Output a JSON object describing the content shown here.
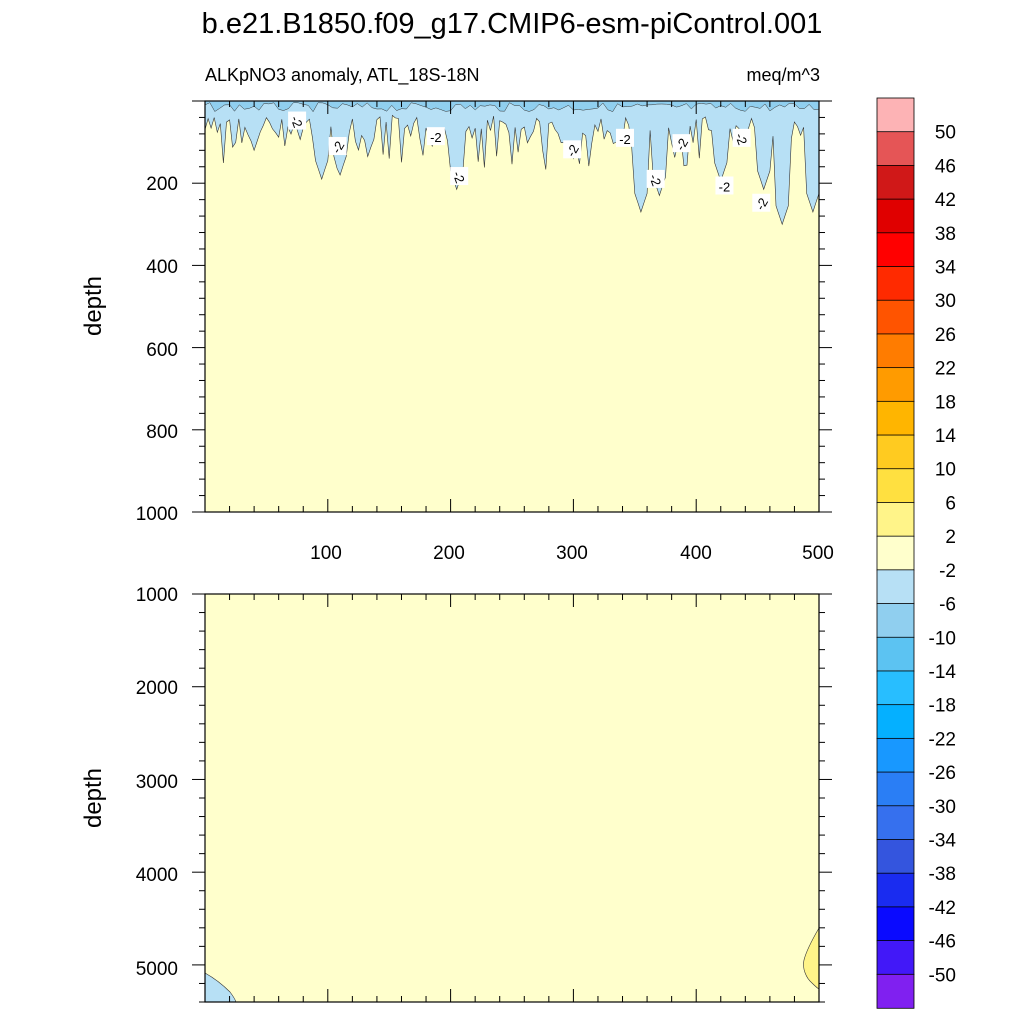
{
  "chart_data": {
    "type": "contour",
    "title": "b.e21.B1850.f09_g17.CMIP6-esm-piControl.001",
    "subtitle_left": "ALKpNO3 anomaly, ATL_18S-18N",
    "subtitle_right": "meq/m^3",
    "colorbar": {
      "levels": [
        "50",
        "46",
        "42",
        "38",
        "34",
        "30",
        "26",
        "22",
        "18",
        "14",
        "10",
        "6",
        "2",
        "-2",
        "-6",
        "-10",
        "-14",
        "-18",
        "-22",
        "-26",
        "-30",
        "-34",
        "-38",
        "-42",
        "-46",
        "-50"
      ],
      "colors_top_to_bottom": [
        "#fdb3b5",
        "#e55556",
        "#d01818",
        "#e00000",
        "#ff0000",
        "#ff2a00",
        "#ff5400",
        "#ff7c00",
        "#ff9b00",
        "#ffb500",
        "#ffcb20",
        "#ffe040",
        "#fff489",
        "#ffffcc",
        "#b7e0f5",
        "#90cfef",
        "#5cc3f2",
        "#28beff",
        "#05b0ff",
        "#1898ff",
        "#2a7ef5",
        "#3670ee",
        "#3455de",
        "#1a2cf0",
        "#0a0aff",
        "#4218f8",
        "#8020f0"
      ]
    },
    "panels": [
      {
        "name": "upper",
        "ylabel": "depth",
        "xlim": [
          0,
          500
        ],
        "ylim": [
          1000,
          0
        ],
        "x_ticks": [
          "100",
          "200",
          "300",
          "400",
          "500"
        ],
        "y_ticks": [
          "200",
          "400",
          "600",
          "800",
          "1000"
        ],
        "background_level": "-2 to 2",
        "contour_labels": [
          {
            "x": 75,
            "depth": 50,
            "text": "-2"
          },
          {
            "x": 108,
            "depth": 112,
            "text": "-2"
          },
          {
            "x": 188,
            "depth": 88,
            "text": "-2"
          },
          {
            "x": 207,
            "depth": 185,
            "text": "-2"
          },
          {
            "x": 299,
            "depth": 120,
            "text": "-2"
          },
          {
            "x": 342,
            "depth": 92,
            "text": "-2"
          },
          {
            "x": 367,
            "depth": 192,
            "text": "-2"
          },
          {
            "x": 388,
            "depth": 105,
            "text": "-2"
          },
          {
            "x": 423,
            "depth": 208,
            "text": "-2"
          },
          {
            "x": 437,
            "depth": 92,
            "text": "-2"
          },
          {
            "x": 453,
            "depth": 250,
            "text": "-2"
          }
        ]
      },
      {
        "name": "lower",
        "ylabel": "depth",
        "xlim": [
          0,
          500
        ],
        "ylim": [
          1000,
          5400
        ],
        "y_ticks": [
          "1000",
          "2000",
          "3000",
          "4000",
          "5000"
        ],
        "background_level": "-2 to 2"
      }
    ]
  }
}
